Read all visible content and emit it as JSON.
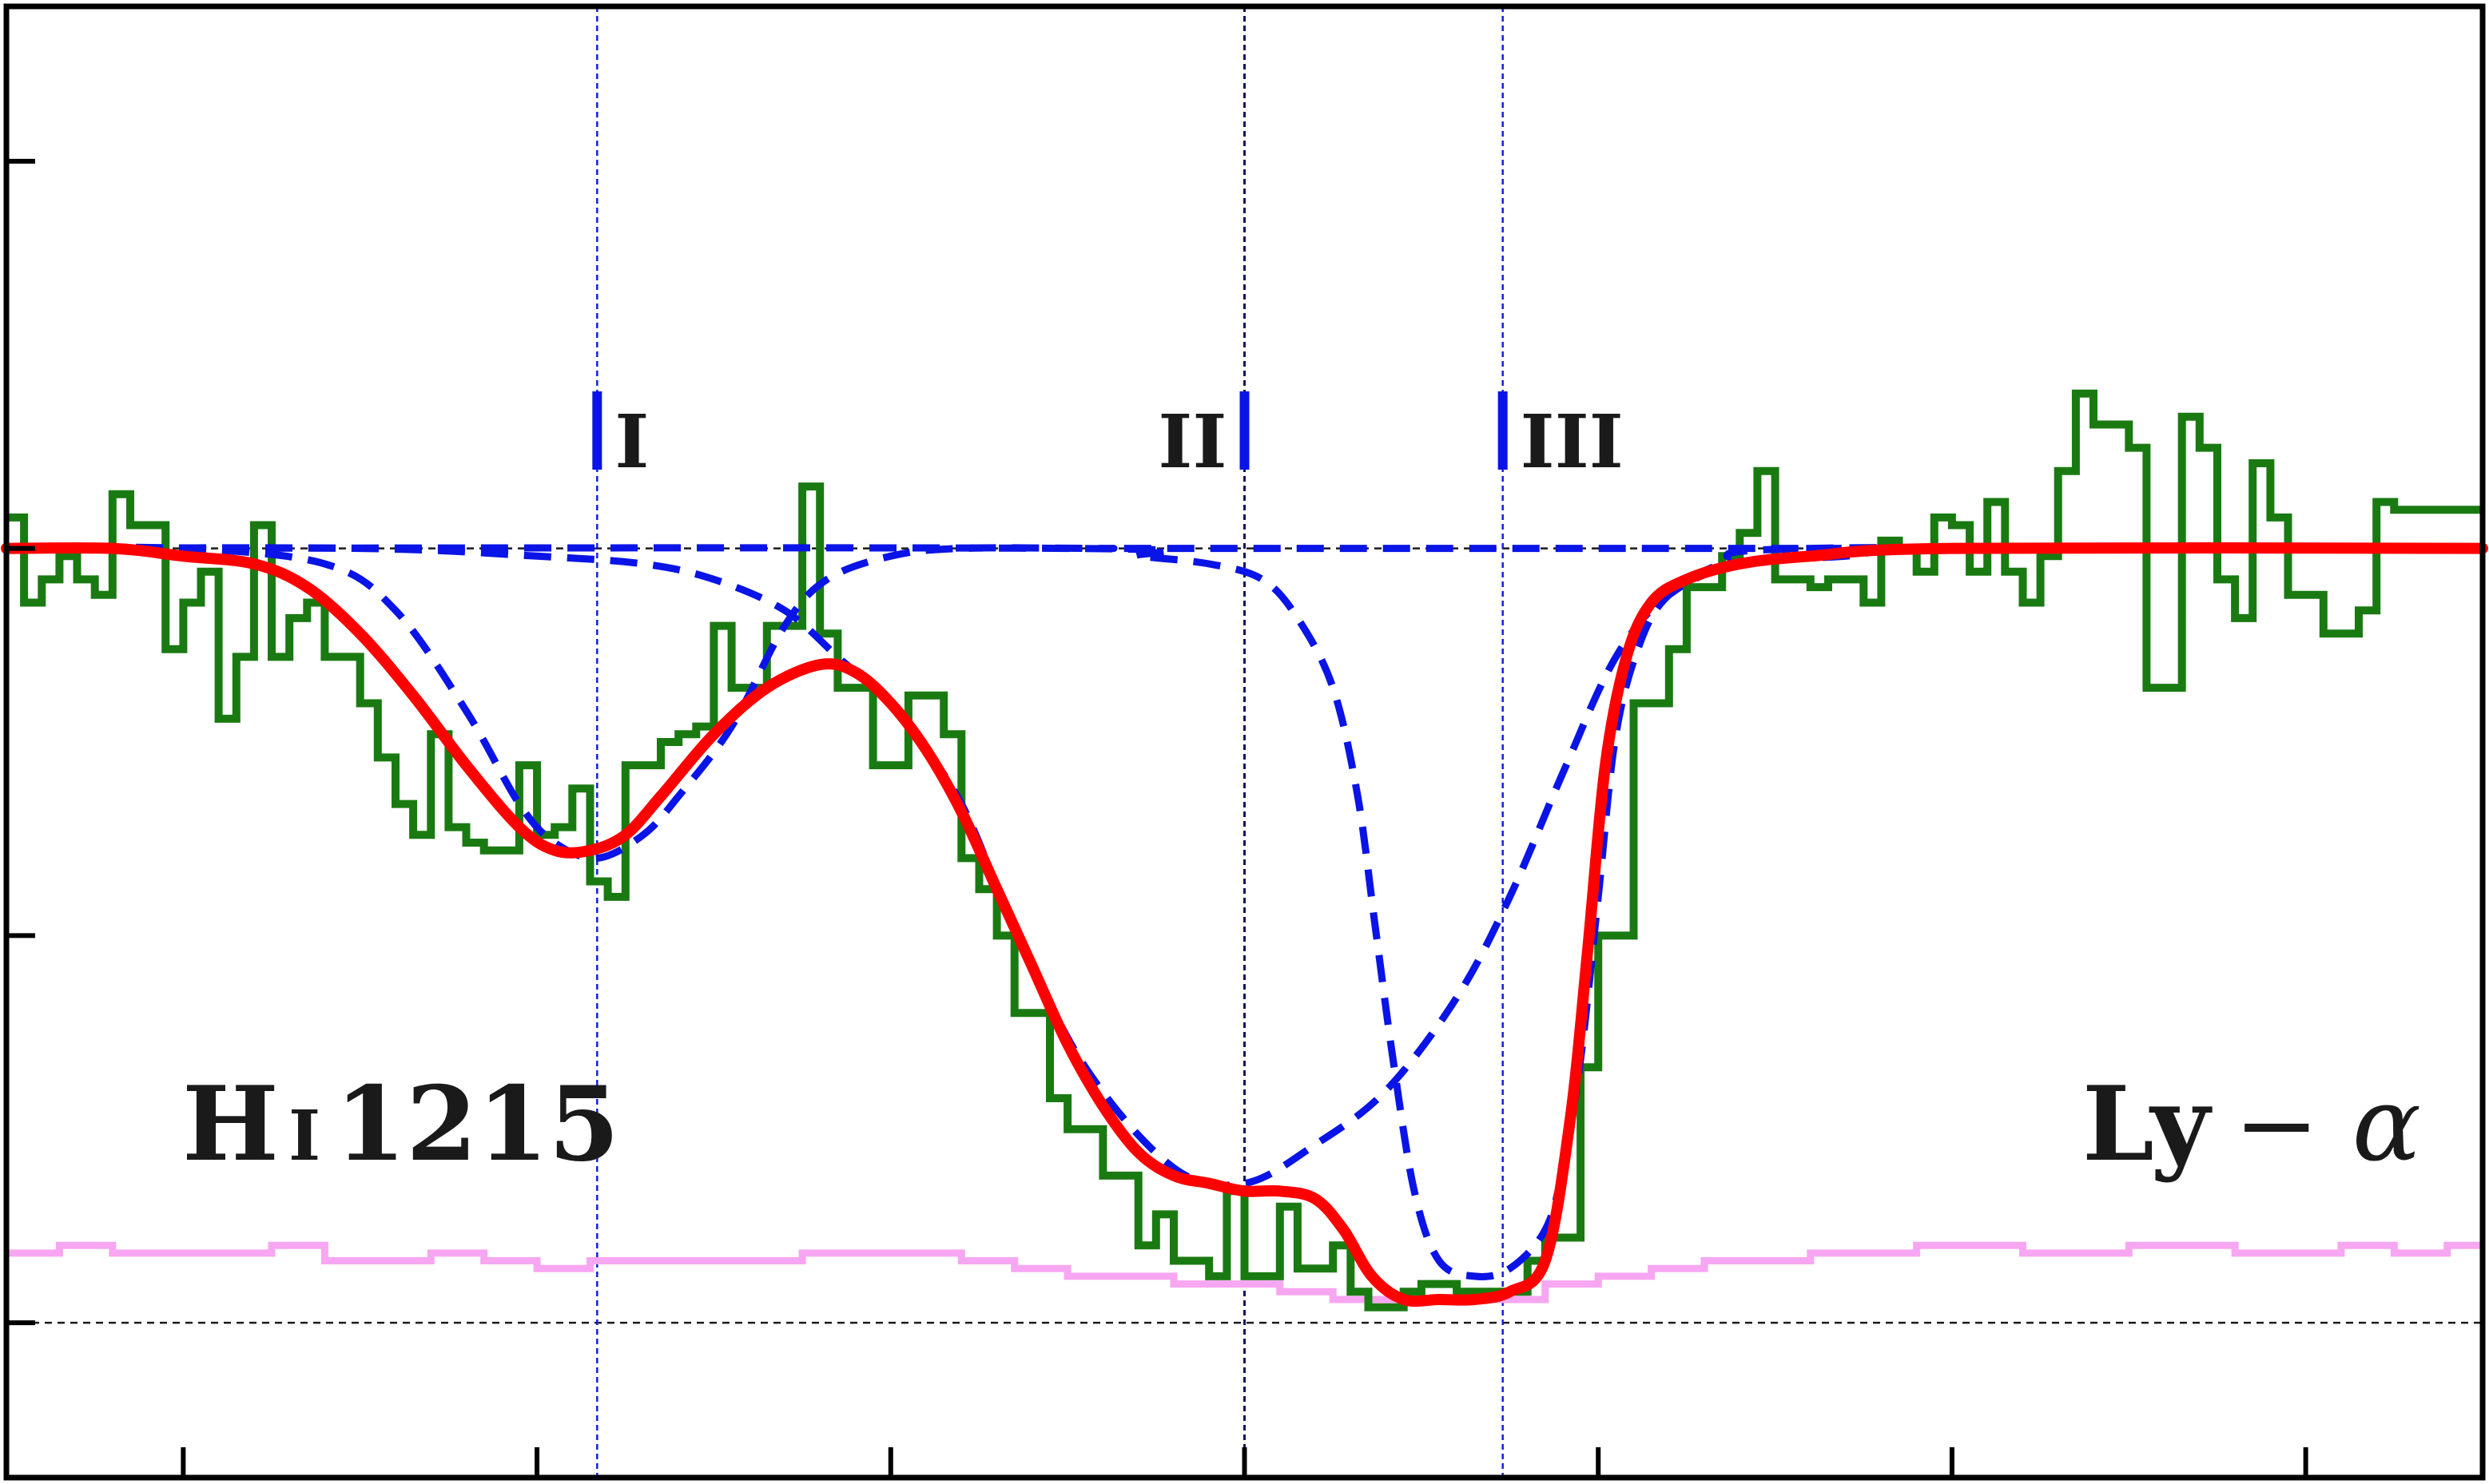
{
  "chart_data": {
    "type": "line",
    "x_ticks": [
      -300,
      -200,
      -100,
      0,
      100,
      200,
      300
    ],
    "y_ticks": [
      0.0,
      0.5,
      1.0
    ],
    "xlim": [
      -350,
      350
    ],
    "ylim": [
      -0.2,
      1.7
    ],
    "grid": false,
    "axis_tick_labels_shown": false,
    "continuum_level": 1.0,
    "zero_level": 0.0,
    "ion_label": {
      "element": "H",
      "ion": "I",
      "wavelength": "1215"
    },
    "line_label": {
      "main": "Ly",
      "suffix": "− α"
    },
    "components": [
      {
        "name": "I",
        "v": -183
      },
      {
        "name": "II",
        "v": 0
      },
      {
        "name": "III",
        "v": 73
      }
    ],
    "colors": {
      "data": "#1a7a12",
      "model": "#ff0000",
      "component": "#0a14e6",
      "error": "#f7a6f2",
      "axis": "#000000",
      "guide": "#1a1a1a",
      "marker_line": "#1020e0"
    },
    "series": [
      {
        "role": "data",
        "style": "step",
        "points": [
          [
            -350,
            1.04
          ],
          [
            -345,
            0.93
          ],
          [
            -340,
            0.96
          ],
          [
            -335,
            0.99
          ],
          [
            -330,
            0.96
          ],
          [
            -325,
            0.94
          ],
          [
            -320,
            1.07
          ],
          [
            -315,
            1.03
          ],
          [
            -310,
            1.03
          ],
          [
            -305,
            0.87
          ],
          [
            -300,
            0.93
          ],
          [
            -295,
            0.97
          ],
          [
            -290,
            0.78
          ],
          [
            -285,
            0.86
          ],
          [
            -280,
            1.03
          ],
          [
            -275,
            0.86
          ],
          [
            -270,
            0.91
          ],
          [
            -265,
            0.93
          ],
          [
            -260,
            0.86
          ],
          [
            -255,
            0.86
          ],
          [
            -250,
            0.8
          ],
          [
            -245,
            0.73
          ],
          [
            -240,
            0.67
          ],
          [
            -235,
            0.63
          ],
          [
            -230,
            0.76
          ],
          [
            -225,
            0.64
          ],
          [
            -220,
            0.62
          ],
          [
            -215,
            0.61
          ],
          [
            -210,
            0.61
          ],
          [
            -205,
            0.72
          ],
          [
            -200,
            0.63
          ],
          [
            -195,
            0.64
          ],
          [
            -190,
            0.69
          ],
          [
            -185,
            0.57
          ],
          [
            -180,
            0.55
          ],
          [
            -175,
            0.72
          ],
          [
            -170,
            0.72
          ],
          [
            -165,
            0.75
          ],
          [
            -160,
            0.76
          ],
          [
            -155,
            0.77
          ],
          [
            -150,
            0.9
          ],
          [
            -145,
            0.82
          ],
          [
            -140,
            0.82
          ],
          [
            -135,
            0.9
          ],
          [
            -130,
            0.9
          ],
          [
            -125,
            1.08
          ],
          [
            -120,
            0.89
          ],
          [
            -115,
            0.82
          ],
          [
            -110,
            0.82
          ],
          [
            -105,
            0.72
          ],
          [
            -100,
            0.72
          ],
          [
            -95,
            0.81
          ],
          [
            -90,
            0.81
          ],
          [
            -85,
            0.76
          ],
          [
            -80,
            0.6
          ],
          [
            -75,
            0.56
          ],
          [
            -70,
            0.5
          ],
          [
            -65,
            0.4
          ],
          [
            -60,
            0.4
          ],
          [
            -55,
            0.29
          ],
          [
            -50,
            0.25
          ],
          [
            -45,
            0.25
          ],
          [
            -40,
            0.19
          ],
          [
            -35,
            0.19
          ],
          [
            -30,
            0.1
          ],
          [
            -25,
            0.14
          ],
          [
            -20,
            0.08
          ],
          [
            -15,
            0.08
          ],
          [
            -10,
            0.06
          ],
          [
            -5,
            0.17
          ],
          [
            0,
            0.06
          ],
          [
            5,
            0.06
          ],
          [
            10,
            0.15
          ],
          [
            15,
            0.07
          ],
          [
            20,
            0.07
          ],
          [
            25,
            0.1
          ],
          [
            30,
            0.04
          ],
          [
            35,
            0.02
          ],
          [
            40,
            0.02
          ],
          [
            45,
            0.04
          ],
          [
            50,
            0.05
          ],
          [
            55,
            0.05
          ],
          [
            60,
            0.04
          ],
          [
            65,
            0.04
          ],
          [
            70,
            0.04
          ],
          [
            75,
            0.04
          ],
          [
            80,
            0.08
          ],
          [
            85,
            0.11
          ],
          [
            90,
            0.11
          ],
          [
            95,
            0.33
          ],
          [
            100,
            0.5
          ],
          [
            105,
            0.5
          ],
          [
            110,
            0.8
          ],
          [
            115,
            0.8
          ],
          [
            120,
            0.87
          ],
          [
            125,
            0.95
          ],
          [
            130,
            0.95
          ],
          [
            135,
            0.99
          ],
          [
            140,
            1.02
          ],
          [
            145,
            1.1
          ],
          [
            150,
            0.96
          ],
          [
            155,
            0.96
          ],
          [
            160,
            0.95
          ],
          [
            165,
            0.96
          ],
          [
            170,
            0.96
          ],
          [
            175,
            0.93
          ],
          [
            180,
            1.01
          ],
          [
            185,
            1.0
          ],
          [
            190,
            0.97
          ],
          [
            195,
            1.04
          ],
          [
            200,
            1.03
          ],
          [
            205,
            0.97
          ],
          [
            210,
            1.06
          ],
          [
            215,
            0.97
          ],
          [
            220,
            0.93
          ],
          [
            225,
            0.99
          ],
          [
            230,
            1.1
          ],
          [
            235,
            1.2
          ],
          [
            240,
            1.16
          ],
          [
            245,
            1.16
          ],
          [
            250,
            1.13
          ],
          [
            255,
            0.82
          ],
          [
            260,
            0.82
          ],
          [
            265,
            1.17
          ],
          [
            270,
            1.13
          ],
          [
            275,
            0.96
          ],
          [
            280,
            0.91
          ],
          [
            285,
            1.11
          ],
          [
            290,
            1.04
          ],
          [
            295,
            0.94
          ],
          [
            300,
            0.94
          ],
          [
            305,
            0.89
          ],
          [
            310,
            0.89
          ],
          [
            315,
            0.92
          ],
          [
            320,
            1.06
          ],
          [
            325,
            1.05
          ]
        ]
      },
      {
        "role": "error",
        "style": "step",
        "points": [
          [
            -350,
            0.09
          ],
          [
            -335,
            0.1
          ],
          [
            -320,
            0.09
          ],
          [
            -305,
            0.09
          ],
          [
            -290,
            0.09
          ],
          [
            -275,
            0.1
          ],
          [
            -260,
            0.08
          ],
          [
            -245,
            0.08
          ],
          [
            -230,
            0.09
          ],
          [
            -215,
            0.08
          ],
          [
            -200,
            0.07
          ],
          [
            -185,
            0.08
          ],
          [
            -170,
            0.08
          ],
          [
            -155,
            0.08
          ],
          [
            -140,
            0.08
          ],
          [
            -125,
            0.09
          ],
          [
            -110,
            0.09
          ],
          [
            -95,
            0.09
          ],
          [
            -80,
            0.08
          ],
          [
            -65,
            0.07
          ],
          [
            -50,
            0.06
          ],
          [
            -35,
            0.06
          ],
          [
            -20,
            0.05
          ],
          [
            -5,
            0.05
          ],
          [
            10,
            0.04
          ],
          [
            25,
            0.03
          ],
          [
            40,
            0.03
          ],
          [
            55,
            0.03
          ],
          [
            70,
            0.03
          ],
          [
            85,
            0.05
          ],
          [
            100,
            0.06
          ],
          [
            115,
            0.07
          ],
          [
            130,
            0.08
          ],
          [
            145,
            0.08
          ],
          [
            160,
            0.09
          ],
          [
            175,
            0.09
          ],
          [
            190,
            0.1
          ],
          [
            205,
            0.1
          ],
          [
            220,
            0.09
          ],
          [
            235,
            0.09
          ],
          [
            250,
            0.1
          ],
          [
            265,
            0.1
          ],
          [
            280,
            0.09
          ],
          [
            295,
            0.09
          ],
          [
            310,
            0.1
          ],
          [
            325,
            0.09
          ],
          [
            340,
            0.1
          ],
          [
            350,
            0.1
          ]
        ]
      },
      {
        "role": "component",
        "name": "I",
        "style": "dashed",
        "points": [
          [
            -350,
            1.0
          ],
          [
            -300,
            1.0
          ],
          [
            -260,
            0.98
          ],
          [
            -240,
            0.92
          ],
          [
            -220,
            0.79
          ],
          [
            -205,
            0.67
          ],
          [
            -195,
            0.62
          ],
          [
            -183,
            0.6
          ],
          [
            -170,
            0.63
          ],
          [
            -160,
            0.68
          ],
          [
            -145,
            0.77
          ],
          [
            -130,
            0.9
          ],
          [
            -118,
            0.96
          ],
          [
            -100,
            0.99
          ],
          [
            -80,
            1.0
          ],
          [
            -40,
            1.0
          ],
          [
            0,
            1.0
          ],
          [
            350,
            1.0
          ]
        ]
      },
      {
        "role": "component",
        "name": "II",
        "style": "dashed",
        "points": [
          [
            -350,
            1.0
          ],
          [
            -250,
            1.0
          ],
          [
            -200,
            0.99
          ],
          [
            -170,
            0.98
          ],
          [
            -150,
            0.96
          ],
          [
            -130,
            0.92
          ],
          [
            -115,
            0.86
          ],
          [
            -105,
            0.82
          ],
          [
            -95,
            0.77
          ],
          [
            -80,
            0.67
          ],
          [
            -65,
            0.51
          ],
          [
            -45,
            0.33
          ],
          [
            -20,
            0.2
          ],
          [
            0,
            0.18
          ],
          [
            20,
            0.23
          ],
          [
            40,
            0.3
          ],
          [
            60,
            0.42
          ],
          [
            75,
            0.55
          ],
          [
            90,
            0.71
          ],
          [
            105,
            0.86
          ],
          [
            120,
            0.94
          ],
          [
            140,
            0.98
          ],
          [
            170,
            0.99
          ],
          [
            200,
            1.0
          ],
          [
            350,
            1.0
          ]
        ]
      },
      {
        "role": "component",
        "name": "III",
        "style": "dashed",
        "points": [
          [
            -350,
            1.0
          ],
          [
            -50,
            1.0
          ],
          [
            -30,
            0.99
          ],
          [
            -10,
            0.98
          ],
          [
            5,
            0.96
          ],
          [
            15,
            0.91
          ],
          [
            25,
            0.82
          ],
          [
            32,
            0.68
          ],
          [
            37,
            0.51
          ],
          [
            42,
            0.34
          ],
          [
            48,
            0.17
          ],
          [
            55,
            0.08
          ],
          [
            65,
            0.06
          ],
          [
            75,
            0.07
          ],
          [
            85,
            0.12
          ],
          [
            90,
            0.2
          ],
          [
            95,
            0.34
          ],
          [
            100,
            0.55
          ],
          [
            105,
            0.76
          ],
          [
            112,
            0.88
          ],
          [
            120,
            0.94
          ],
          [
            135,
            0.98
          ],
          [
            160,
            1.0
          ],
          [
            350,
            1.0
          ]
        ]
      },
      {
        "role": "model",
        "style": "solid",
        "points": [
          [
            -350,
            1.0
          ],
          [
            -320,
            1.0
          ],
          [
            -300,
            0.99
          ],
          [
            -280,
            0.98
          ],
          [
            -265,
            0.95
          ],
          [
            -250,
            0.89
          ],
          [
            -235,
            0.81
          ],
          [
            -220,
            0.72
          ],
          [
            -205,
            0.64
          ],
          [
            -195,
            0.61
          ],
          [
            -185,
            0.61
          ],
          [
            -175,
            0.63
          ],
          [
            -165,
            0.68
          ],
          [
            -150,
            0.76
          ],
          [
            -135,
            0.82
          ],
          [
            -120,
            0.85
          ],
          [
            -110,
            0.84
          ],
          [
            -100,
            0.8
          ],
          [
            -90,
            0.74
          ],
          [
            -80,
            0.66
          ],
          [
            -70,
            0.56
          ],
          [
            -60,
            0.46
          ],
          [
            -50,
            0.36
          ],
          [
            -40,
            0.28
          ],
          [
            -30,
            0.22
          ],
          [
            -20,
            0.19
          ],
          [
            -10,
            0.18
          ],
          [
            0,
            0.17
          ],
          [
            10,
            0.17
          ],
          [
            20,
            0.16
          ],
          [
            28,
            0.12
          ],
          [
            36,
            0.06
          ],
          [
            45,
            0.03
          ],
          [
            55,
            0.03
          ],
          [
            65,
            0.03
          ],
          [
            75,
            0.04
          ],
          [
            85,
            0.08
          ],
          [
            92,
            0.26
          ],
          [
            97,
            0.48
          ],
          [
            102,
            0.72
          ],
          [
            108,
            0.86
          ],
          [
            115,
            0.93
          ],
          [
            125,
            0.96
          ],
          [
            140,
            0.98
          ],
          [
            160,
            0.99
          ],
          [
            200,
            1.0
          ],
          [
            350,
            1.0
          ]
        ]
      }
    ]
  }
}
